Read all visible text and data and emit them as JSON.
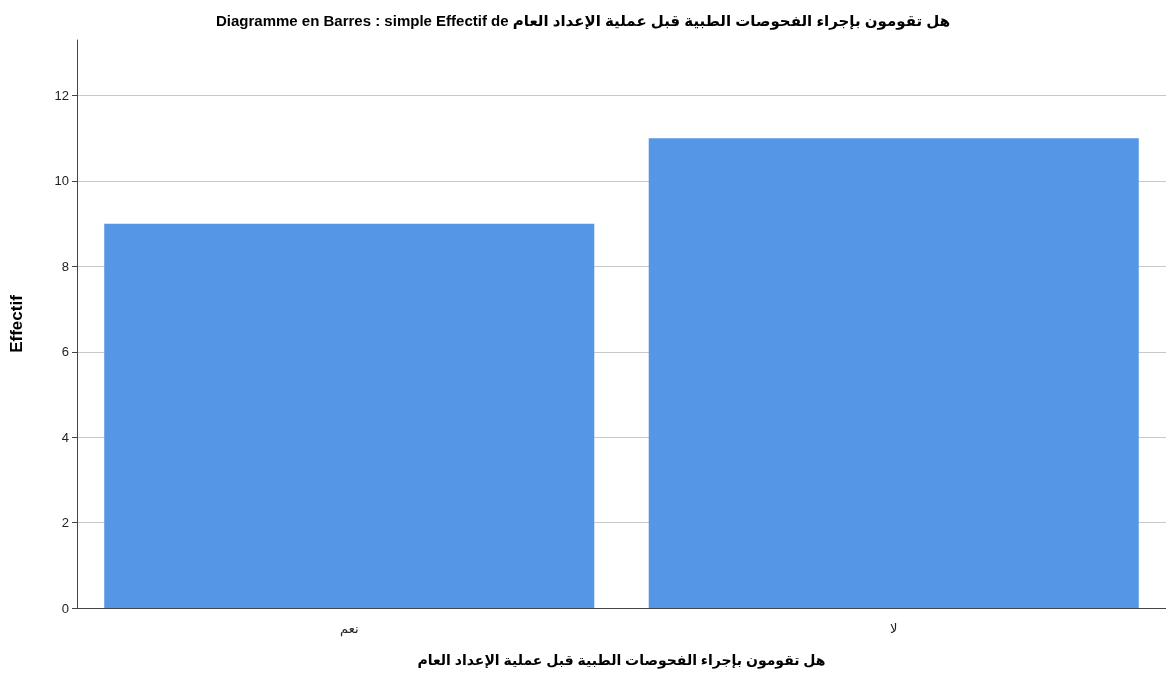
{
  "chart_data": {
    "type": "bar",
    "title": "Diagramme en Barres : simple Effectif de هل تقومون بإجراء الفحوصات الطبية قبل عملية الإعداد العام",
    "xlabel": "هل تقومون بإجراء الفحوصات الطبية قبل عملية الإعداد العام",
    "ylabel": "Effectif",
    "categories": [
      "نعم",
      "لا"
    ],
    "values": [
      9,
      11
    ],
    "color": "#5596e6",
    "ylim": [
      0,
      13.3
    ],
    "yticks": [
      0,
      2,
      4,
      6,
      8,
      10,
      12
    ],
    "grid": "y"
  }
}
